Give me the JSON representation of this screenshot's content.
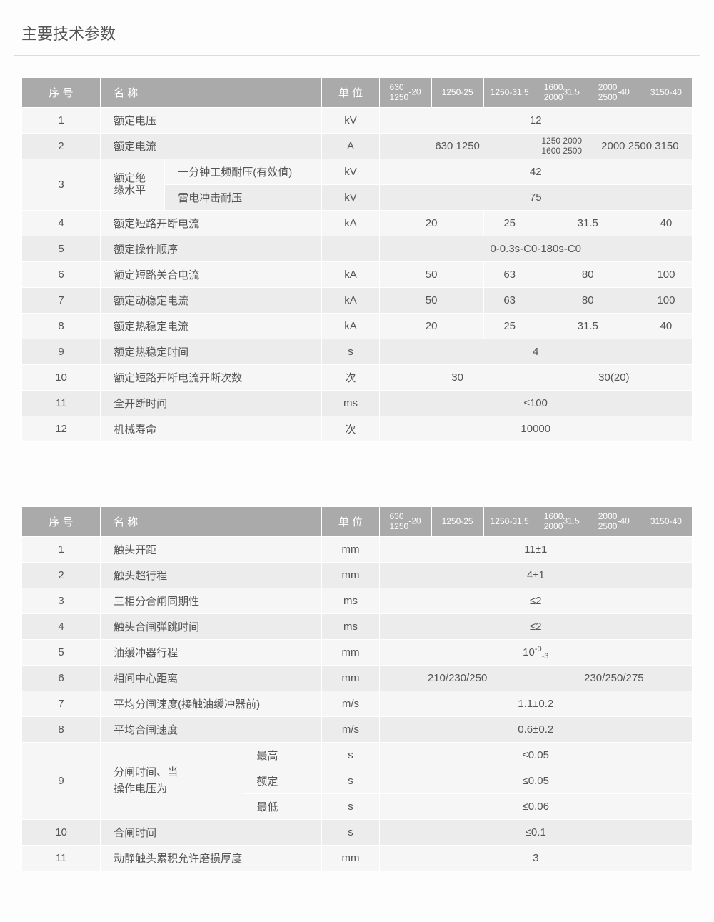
{
  "page_title": "主要技术参数",
  "headers": {
    "seq": "序 号",
    "name": "名 称",
    "unit": "单 位",
    "c1a": "630\n1250",
    "c1b": "-20",
    "c2": "1250-25",
    "c3": "1250-31.5",
    "c4a": "1600\n2000",
    "c4b": "31.5",
    "c5a": "2000\n2500",
    "c5b": "-40",
    "c6": "3150-40"
  },
  "t1": {
    "r1": {
      "seq": "1",
      "name": "额定电压",
      "unit": "kV",
      "val": "12"
    },
    "r2": {
      "seq": "2",
      "name": "额定电流",
      "unit": "A",
      "v1": "630  1250",
      "v2": "1250 2000\n1600 2500",
      "v3": "2000 2500 3150"
    },
    "r3": {
      "seq": "3",
      "name_a": "额定绝\n缘水平",
      "sub1": "一分钟工频耐压(有效值)",
      "unit1": "kV",
      "val1": "42",
      "sub2": "雷电冲击耐压",
      "unit2": "kV",
      "val2": "75"
    },
    "r4": {
      "seq": "4",
      "name": "额定短路开断电流",
      "unit": "kA",
      "v1": "20",
      "v2": "25",
      "v3": "31.5",
      "v4": "40"
    },
    "r5": {
      "seq": "5",
      "name": "额定操作顺序",
      "unit": "",
      "val": "0-0.3s-C0-180s-C0"
    },
    "r6": {
      "seq": "6",
      "name": "额定短路关合电流",
      "unit": "kA",
      "v1": "50",
      "v2": "63",
      "v3": "80",
      "v4": "100"
    },
    "r7": {
      "seq": "7",
      "name": "额定动稳定电流",
      "unit": "kA",
      "v1": "50",
      "v2": "63",
      "v3": "80",
      "v4": "100"
    },
    "r8": {
      "seq": "8",
      "name": "额定热稳定电流",
      "unit": "kA",
      "v1": "20",
      "v2": "25",
      "v3": "31.5",
      "v4": "40"
    },
    "r9": {
      "seq": "9",
      "name": "额定热稳定时间",
      "unit": "s",
      "val": "4"
    },
    "r10": {
      "seq": "10",
      "name": "额定短路开断电流开断次数",
      "unit": "次",
      "v1": "30",
      "v2": "30(20)"
    },
    "r11": {
      "seq": "11",
      "name": "全开断时间",
      "unit": "ms",
      "val": "≤100"
    },
    "r12": {
      "seq": "12",
      "name": "机械寿命",
      "unit": "次",
      "val": "10000"
    }
  },
  "t2": {
    "r1": {
      "seq": "1",
      "name": "触头开距",
      "unit": "mm",
      "val": "11±1"
    },
    "r2": {
      "seq": "2",
      "name": "触头超行程",
      "unit": "mm",
      "val": "4±1"
    },
    "r3": {
      "seq": "3",
      "name": "三相分合闸同期性",
      "unit": "ms",
      "val": "≤2"
    },
    "r4": {
      "seq": "4",
      "name": "触头合闸弹跳时间",
      "unit": "ms",
      "val": "≤2"
    },
    "r5": {
      "seq": "5",
      "name": "油缓冲器行程",
      "unit": "mm",
      "val_main": "10",
      "val_sup": "-0",
      "val_sub": "-3"
    },
    "r6": {
      "seq": "6",
      "name": "相间中心距离",
      "unit": "mm",
      "v1": "210/230/250",
      "v2": "230/250/275"
    },
    "r7": {
      "seq": "7",
      "name": "平均分闸速度(接触油缓冲器前)",
      "unit": "m/s",
      "val": "1.1±0.2"
    },
    "r8": {
      "seq": "8",
      "name": "平均合闸速度",
      "unit": "m/s",
      "val": "0.6±0.2"
    },
    "r9": {
      "seq": "9",
      "name": "分闸时间、当\n操作电压为",
      "s1": "最高",
      "u1": "s",
      "v1": "≤0.05",
      "s2": "额定",
      "u2": "s",
      "v2": "≤0.05",
      "s3": "最低",
      "u3": "s",
      "v3": "≤0.06"
    },
    "r10": {
      "seq": "10",
      "name": "合闸时间",
      "unit": "s",
      "val": "≤0.1"
    },
    "r11": {
      "seq": "11",
      "name": "动静触头累积允许磨损厚度",
      "unit": "mm",
      "val": "3"
    }
  },
  "colors": {
    "header_bg": "#aaaaaa",
    "header_fg": "#ffffff",
    "odd_bg": "#f6f6f6",
    "even_bg": "#ececec",
    "text": "#555555",
    "border": "#ffffff"
  }
}
